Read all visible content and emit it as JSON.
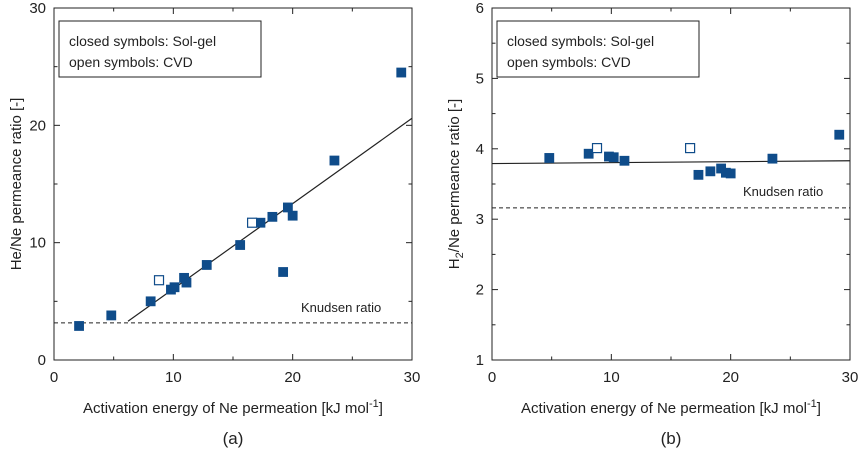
{
  "colors": {
    "marker": "#0f4c8a",
    "axis": "#222222",
    "text": "#222222"
  },
  "chart_data": [
    {
      "type": "scatter",
      "panel_label": "(a)",
      "xlabel": "Activation energy of Ne permeation [kJ mol",
      "xlabel_sup": "-1",
      "xlabel_end": "]",
      "ylabel": "He/Ne permeance ratio [-]",
      "xlim": [
        0,
        30
      ],
      "ylim": [
        0,
        30
      ],
      "xticks": [
        "0",
        "10",
        "20",
        "30"
      ],
      "yticks": [
        "0",
        "10",
        "20",
        "30"
      ],
      "legend": {
        "line1": "closed symbols: Sol-gel",
        "line2": "open symbols: CVD",
        "position": "top-left"
      },
      "reference_line": {
        "label": "Knudsen ratio",
        "y": 3.16,
        "style": "dashed"
      },
      "fit_line": {
        "x": [
          6.2,
          30
        ],
        "y": [
          3.3,
          20.6
        ]
      },
      "series": [
        {
          "name": "Sol-gel",
          "marker": "filled-square",
          "points": [
            [
              2.1,
              2.9
            ],
            [
              4.8,
              3.8
            ],
            [
              8.1,
              5.0
            ],
            [
              9.8,
              6.0
            ],
            [
              10.1,
              6.2
            ],
            [
              10.9,
              7.0
            ],
            [
              11.1,
              6.6
            ],
            [
              12.8,
              8.1
            ],
            [
              15.6,
              9.8
            ],
            [
              17.3,
              11.7
            ],
            [
              18.3,
              12.2
            ],
            [
              19.6,
              13.0
            ],
            [
              20.0,
              12.3
            ],
            [
              19.2,
              7.5
            ],
            [
              23.5,
              17.0
            ],
            [
              29.1,
              24.5
            ]
          ]
        },
        {
          "name": "CVD",
          "marker": "open-square",
          "points": [
            [
              8.8,
              6.8
            ],
            [
              16.6,
              11.7
            ]
          ]
        }
      ]
    },
    {
      "type": "scatter",
      "panel_label": "(b)",
      "xlabel": "Activation energy of Ne permeation [kJ mol",
      "xlabel_sup": "-1",
      "xlabel_end": "]",
      "ylabel_main": "H",
      "ylabel_sub": "2",
      "ylabel_rest": "/Ne permeance ratio [-]",
      "xlim": [
        0,
        30
      ],
      "ylim": [
        1,
        6
      ],
      "xticks": [
        "0",
        "10",
        "20",
        "30"
      ],
      "yticks": [
        "1",
        "2",
        "3",
        "4",
        "5",
        "6"
      ],
      "legend": {
        "line1": "closed symbols: Sol-gel",
        "line2": "open symbols: CVD",
        "position": "top-left"
      },
      "reference_line": {
        "label": "Knudsen ratio",
        "y": 3.16,
        "style": "dashed"
      },
      "fit_line": {
        "x": [
          0,
          30
        ],
        "y": [
          3.79,
          3.83
        ]
      },
      "series": [
        {
          "name": "Sol-gel",
          "marker": "filled-square",
          "points": [
            [
              4.8,
              3.87
            ],
            [
              8.1,
              3.93
            ],
            [
              9.8,
              3.89
            ],
            [
              10.2,
              3.88
            ],
            [
              11.1,
              3.83
            ],
            [
              17.3,
              3.63
            ],
            [
              18.3,
              3.68
            ],
            [
              19.2,
              3.72
            ],
            [
              19.6,
              3.66
            ],
            [
              20.0,
              3.65
            ],
            [
              23.5,
              3.86
            ],
            [
              29.1,
              4.2
            ]
          ]
        },
        {
          "name": "CVD",
          "marker": "open-square",
          "points": [
            [
              8.8,
              4.01
            ],
            [
              16.6,
              4.01
            ]
          ]
        }
      ]
    }
  ]
}
